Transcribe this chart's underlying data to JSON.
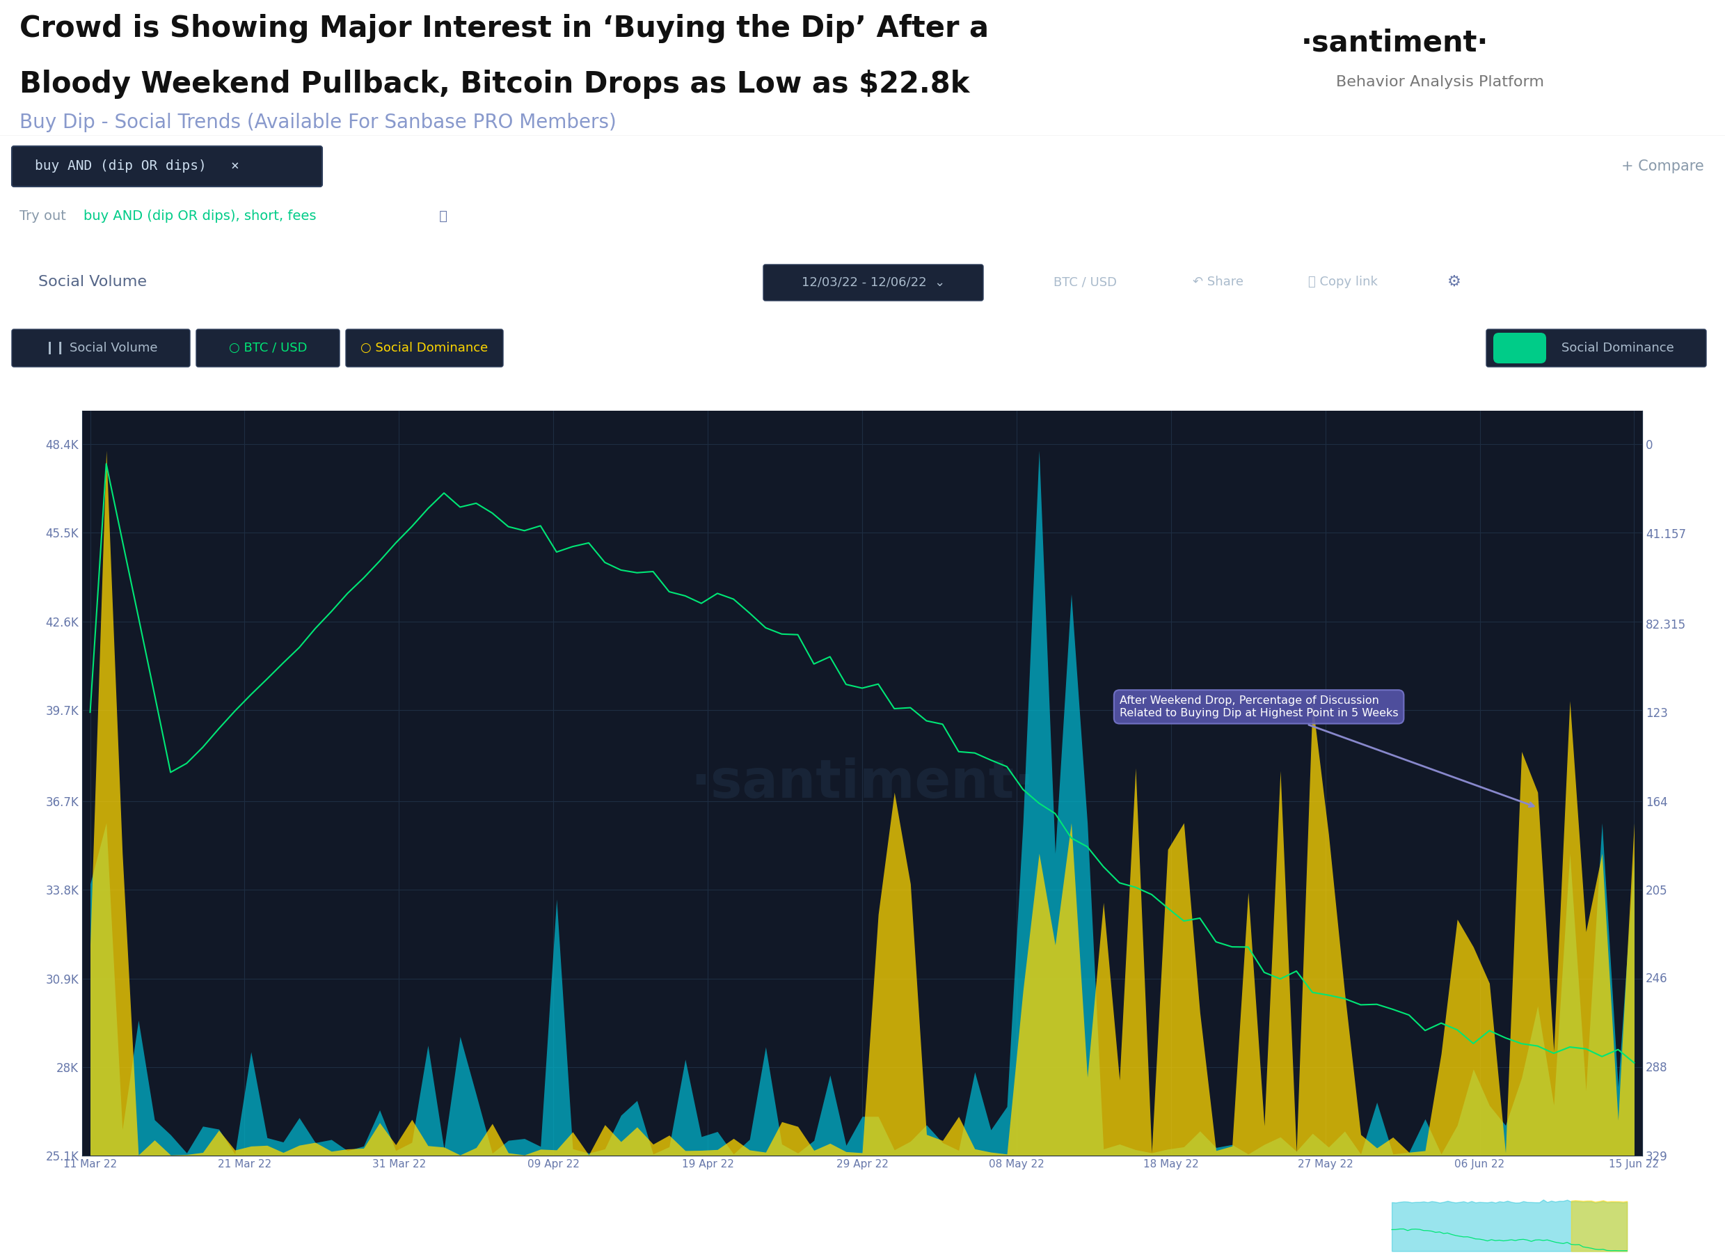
{
  "title_line1": "Crowd is Showing Major Interest in ‘Buying the Dip’ After a",
  "title_line2": "Bloody Weekend Pullback, Bitcoin Drops as Low as $22.8k",
  "subtitle": "Buy Dip - Social Trends (Available For Sanbase PRO Members)",
  "santiment_text": "·santiment·",
  "santiment_sub": "Behavior Analysis Platform",
  "search_bar_text": "buy AND (dip OR dips)   ×",
  "date_range_text": "12/03/22 - 12/06/22",
  "pair_text": "BTC / USD",
  "social_vol_label": "Social Volume",
  "social_dom_toggle": "Social Dominance",
  "yticks_left": [
    "48.4K",
    "45.5K",
    "42.6K",
    "39.7K",
    "36.7K",
    "33.8K",
    "30.9K",
    "28K",
    "25.1K"
  ],
  "yticks_right": [
    "329",
    "288",
    "246",
    "205",
    "164",
    "123",
    "82.315",
    "41.157",
    "0"
  ],
  "xticks": [
    "11 Mar 22",
    "21 Mar 22",
    "31 Mar 22",
    "09 Apr 22",
    "19 Apr 22",
    "29 Apr 22",
    "08 May 22",
    "18 May 22",
    "27 May 22",
    "06 Jun 22",
    "15 Jun 22"
  ],
  "annotation_text": "After Weekend Drop, Percentage of Discussion\nRelated to Buying Dip at Highest Point in 5 Weeks",
  "compare_text": "+ Compare",
  "header_bg": "#ffffff",
  "panel_bg": "#151d2e",
  "chart_bg": "#111827",
  "search_box_bg": "#1a2438",
  "search_box_border": "#2d3d5a",
  "btc_color": "#00e676",
  "social_dom_color": "#ffd700",
  "social_vol_color": "#00bcd4",
  "annotation_bg": "#5555aa",
  "annotation_border": "#7777cc",
  "arrow_color": "#8888cc",
  "grid_color": "#1e2d42",
  "tick_color": "#6677aa",
  "watermark_color": "#1e2d42",
  "toggle_color": "#00cc88",
  "tryout_highlight": "#00cc88",
  "legend_text_color": "#aabbcc",
  "panel_label_color": "#556688"
}
